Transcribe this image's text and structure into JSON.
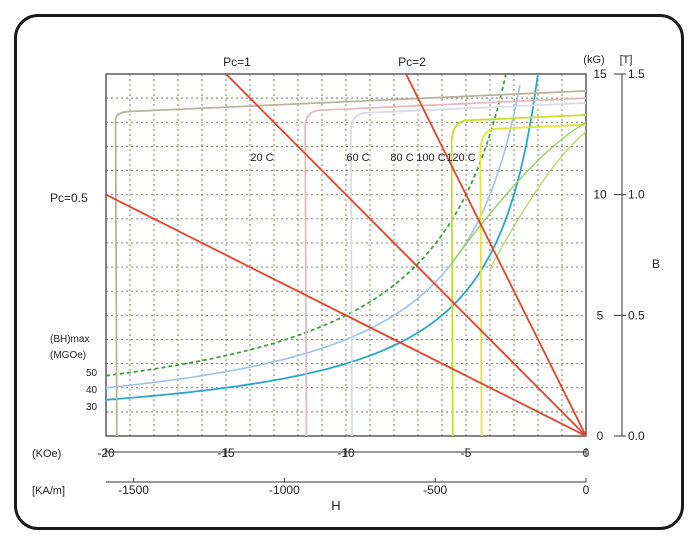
{
  "chart_data": {
    "type": "line",
    "title": "",
    "x_axis": {
      "label": "H",
      "koe_unit": "(KOe)",
      "koe_ticks": [
        "-20",
        "-15",
        "-10",
        "-5",
        "0"
      ],
      "koe_values": [
        -20,
        -15,
        -10,
        -5,
        0
      ],
      "kam_unit": "[KA/m]",
      "kam_ticks": [
        "-1500",
        "-1000",
        "-500",
        "0"
      ],
      "kam_values": [
        -1500,
        -1000,
        -500,
        0
      ],
      "range_koe": [
        -20,
        0
      ]
    },
    "y_axis": {
      "label": "B",
      "kg_unit": "(kG)",
      "kg_ticks": [
        "0",
        "5",
        "10",
        "15"
      ],
      "kg_values": [
        0,
        5,
        10,
        15
      ],
      "t_unit": "[T]",
      "t_ticks": [
        "0.0",
        "0.5",
        "1.0",
        "1.5"
      ],
      "t_values": [
        0,
        0.5,
        1.0,
        1.5
      ],
      "range_kg": [
        0,
        15
      ]
    },
    "grid": true,
    "load_lines": [
      {
        "label": "Pc=0.5",
        "permeance": 0.5
      },
      {
        "label": "Pc=1",
        "permeance": 1
      },
      {
        "label": "Pc=2",
        "permeance": 2
      }
    ],
    "energy_product": {
      "label_line1": "(BH)max",
      "label_line2": "(MGOe)",
      "levels": [
        "50",
        "40",
        "30"
      ],
      "values": [
        50,
        40,
        30
      ]
    },
    "temperatures": [
      {
        "label": "20 C",
        "temp": 20,
        "br": 14.3,
        "hcj": -19.6
      },
      {
        "label": "60 C",
        "temp": 60,
        "br": 14.0,
        "hcj": -11.7
      },
      {
        "label": "80 C",
        "temp": 80,
        "br": 13.8,
        "hcj": -9.8
      },
      {
        "label": "100 C",
        "temp": 100,
        "br": 13.3,
        "hcj": -5.6
      },
      {
        "label": "120 C",
        "temp": 120,
        "br": 12.9,
        "hcj": -4.4
      }
    ]
  },
  "colors": {
    "load_line": "#e2432a",
    "grid": "#6f7a52",
    "frame": "#1a1a1a",
    "bh_50": "#3aa13a",
    "bh_40": "#9ec3e6",
    "bh_30": "#29a6c9",
    "t20": "#b9b39a",
    "t60": "#e6b9bd",
    "t80": "#d7dde6",
    "t100": "#c9dc2c",
    "t120": "#e8e23a",
    "extra1": "#8fcf60",
    "extra2": "#b3d86a"
  }
}
